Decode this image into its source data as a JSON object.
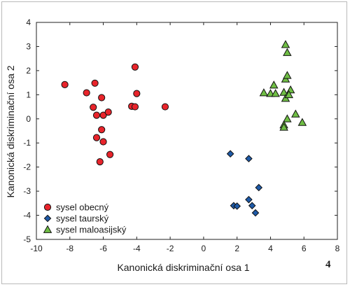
{
  "figure_number": "4",
  "chart_data": {
    "type": "scatter",
    "title": "",
    "xlabel": "Kanonická diskriminační osa 1",
    "ylabel": "Kanonická diskriminační osa 2",
    "xlim": [
      -10,
      8
    ],
    "ylim": [
      -5,
      4
    ],
    "xticks": [
      -10,
      -8,
      -6,
      -4,
      -2,
      0,
      2,
      4,
      6,
      8
    ],
    "yticks": [
      -5,
      -4,
      -3,
      -2,
      -1,
      0,
      1,
      2,
      3,
      4
    ],
    "grid": false,
    "legend_position": "bottom-left",
    "series": [
      {
        "name": "sysel obecný",
        "marker": "circle",
        "color": "#e8242b",
        "points": [
          [
            -8.3,
            1.42
          ],
          [
            -7.0,
            1.08
          ],
          [
            -6.5,
            1.48
          ],
          [
            -4.1,
            2.15
          ],
          [
            -4.0,
            1.05
          ],
          [
            -6.1,
            0.88
          ],
          [
            -6.6,
            0.48
          ],
          [
            -6.4,
            0.15
          ],
          [
            -6.0,
            0.15
          ],
          [
            -5.7,
            0.28
          ],
          [
            -4.3,
            0.52
          ],
          [
            -4.1,
            0.5
          ],
          [
            -2.3,
            0.5
          ],
          [
            -6.1,
            -0.45
          ],
          [
            -6.4,
            -0.78
          ],
          [
            -6.0,
            -0.95
          ],
          [
            -5.6,
            -1.48
          ],
          [
            -6.2,
            -1.78
          ]
        ]
      },
      {
        "name": "sysel taurský",
        "marker": "diamond",
        "color": "#1e5aa8",
        "points": [
          [
            1.6,
            -1.45
          ],
          [
            2.7,
            -1.65
          ],
          [
            3.3,
            -2.85
          ],
          [
            2.7,
            -3.35
          ],
          [
            1.8,
            -3.6
          ],
          [
            2.0,
            -3.62
          ],
          [
            2.9,
            -3.6
          ],
          [
            3.1,
            -3.9
          ]
        ]
      },
      {
        "name": "sysel maloasijský",
        "marker": "triangle",
        "color": "#6fbe44",
        "points": [
          [
            4.9,
            3.08
          ],
          [
            5.0,
            2.75
          ],
          [
            4.9,
            1.65
          ],
          [
            5.0,
            1.8
          ],
          [
            4.2,
            1.4
          ],
          [
            3.6,
            1.08
          ],
          [
            4.0,
            1.05
          ],
          [
            4.3,
            1.05
          ],
          [
            4.8,
            1.1
          ],
          [
            5.2,
            1.2
          ],
          [
            4.9,
            0.85
          ],
          [
            5.1,
            1.0
          ],
          [
            5.5,
            0.2
          ],
          [
            5.9,
            -0.15
          ],
          [
            5.0,
            0.0
          ],
          [
            4.8,
            -0.25
          ],
          [
            4.8,
            -0.35
          ]
        ]
      }
    ]
  }
}
